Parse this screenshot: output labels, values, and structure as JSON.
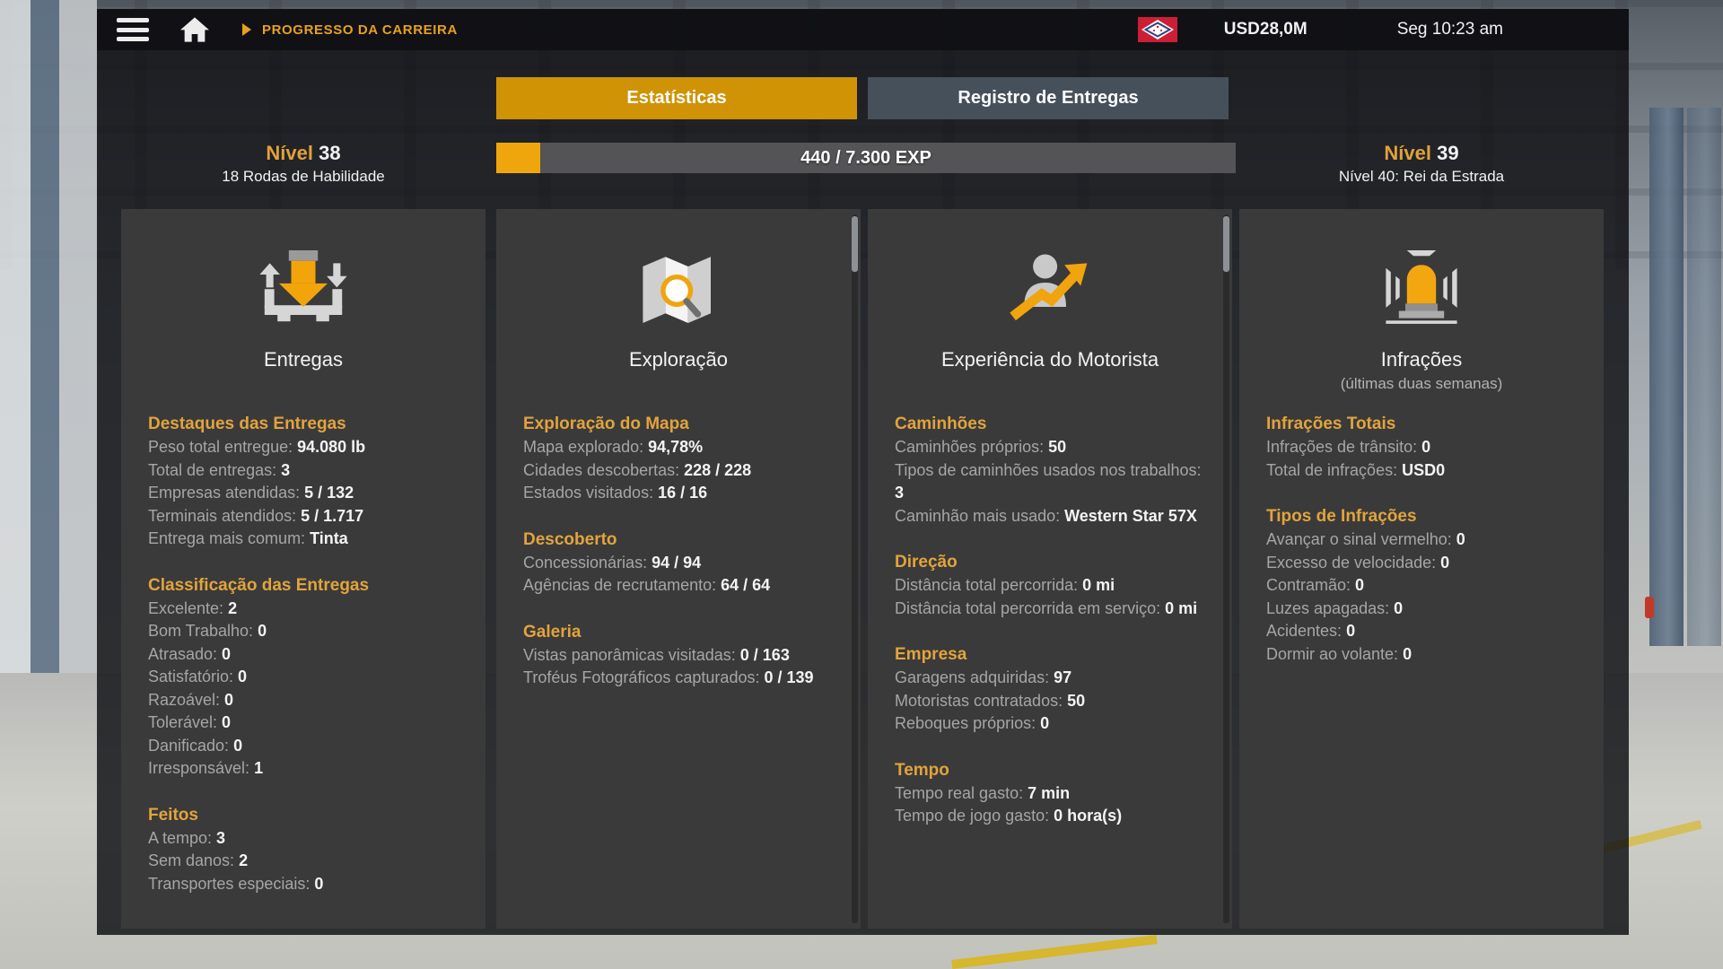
{
  "topbar": {
    "menu_icon": "hamburger-menu-icon",
    "home_icon": "home-icon",
    "breadcrumb": "PROGRESSO DA CARREIRA",
    "flag_icon": "arkansas-state-flag-icon",
    "money": "USD28,0M",
    "time": "Seg 10:23 am"
  },
  "tabs": [
    {
      "label": "Estatísticas",
      "active": true
    },
    {
      "label": "Registro de Entregas",
      "active": false
    }
  ],
  "level": {
    "current_label": "Nível",
    "current_value": "38",
    "current_sub": "18 Rodas de Habilidade",
    "next_label": "Nível",
    "next_value": "39",
    "next_sub": "Nível 40: Rei da Estrada",
    "exp_text": "440 / 7.300 EXP",
    "exp_percent": 6
  },
  "colors": {
    "accent_orange": "#e2a43c",
    "active_tab": "#cf9305",
    "exp_fill": "#efa60d",
    "panel_bg": "#3a3a3a",
    "label_gray": "#a6a6a6",
    "value_white": "#f4f4f4",
    "flag_red": "#cc1f36"
  },
  "columns": [
    {
      "icon": "delivery-arrows-icon",
      "title": "Entregas",
      "subtitle": "",
      "scrollbar": false,
      "sections": [
        {
          "header": "Destaques das Entregas",
          "rows": [
            {
              "label": "Peso total entregue",
              "value": "94.080 lb"
            },
            {
              "label": "Total de entregas",
              "value": "3"
            },
            {
              "label": "Empresas atendidas",
              "value": "5 / 132"
            },
            {
              "label": "Terminais atendidos",
              "value": "5 / 1.717"
            },
            {
              "label": "Entrega mais comum",
              "value": "Tinta"
            }
          ]
        },
        {
          "header": "Classificação das Entregas",
          "rows": [
            {
              "label": "Excelente",
              "value": "2"
            },
            {
              "label": "Bom Trabalho",
              "value": "0"
            },
            {
              "label": "Atrasado",
              "value": "0"
            },
            {
              "label": "Satisfatório",
              "value": "0"
            },
            {
              "label": "Razoável",
              "value": "0"
            },
            {
              "label": "Tolerável",
              "value": "0"
            },
            {
              "label": "Danificado",
              "value": "0"
            },
            {
              "label": "Irresponsável",
              "value": "1"
            }
          ]
        },
        {
          "header": "Feitos",
          "rows": [
            {
              "label": "A tempo",
              "value": "3"
            },
            {
              "label": "Sem danos",
              "value": "2"
            },
            {
              "label": "Transportes especiais",
              "value": "0"
            }
          ]
        }
      ]
    },
    {
      "icon": "map-magnifier-icon",
      "title": "Exploração",
      "subtitle": "",
      "scrollbar": true,
      "sections": [
        {
          "header": "Exploração do Mapa",
          "rows": [
            {
              "label": "Mapa explorado",
              "value": "94,78%"
            },
            {
              "label": "Cidades descobertas",
              "value": "228 / 228"
            },
            {
              "label": "Estados visitados",
              "value": "16 / 16"
            }
          ]
        },
        {
          "header": "Descoberto",
          "rows": [
            {
              "label": "Concessionárias",
              "value": "94 / 94"
            },
            {
              "label": "Agências de recrutamento",
              "value": "64 / 64"
            }
          ]
        },
        {
          "header": "Galeria",
          "rows": [
            {
              "label": "Vistas panorâmicas visitadas",
              "value": "0 / 163"
            },
            {
              "label": "Troféus Fotográficos capturados",
              "value": "0 / 139"
            }
          ]
        }
      ]
    },
    {
      "icon": "driver-trend-arrow-icon",
      "title": "Experiência do Motorista",
      "subtitle": "",
      "scrollbar": true,
      "sections": [
        {
          "header": "Caminhões",
          "rows": [
            {
              "label": "Caminhões próprios",
              "value": "50"
            },
            {
              "label": "Tipos de caminhões usados nos trabalhos",
              "value": "3"
            },
            {
              "label": "Caminhão mais usado",
              "value": "Western Star 57X"
            }
          ]
        },
        {
          "header": "Direção",
          "rows": [
            {
              "label": "Distância total percorrida",
              "value": "0 mi"
            },
            {
              "label": "Distância total percorrida em serviço",
              "value": "0 mi"
            }
          ]
        },
        {
          "header": "Empresa",
          "rows": [
            {
              "label": "Garagens adquiridas",
              "value": "97"
            },
            {
              "label": "Motoristas contratados",
              "value": "50"
            },
            {
              "label": "Reboques próprios",
              "value": "0"
            }
          ]
        },
        {
          "header": "Tempo",
          "rows": [
            {
              "label": "Tempo real gasto",
              "value": "7 min"
            },
            {
              "label": "Tempo de jogo gasto",
              "value": "0 hora(s)"
            }
          ]
        }
      ]
    },
    {
      "icon": "siren-beacon-icon",
      "title": "Infrações",
      "subtitle": "(últimas duas semanas)",
      "scrollbar": false,
      "sections": [
        {
          "header": "Infrações Totais",
          "rows": [
            {
              "label": "Infrações de trânsito",
              "value": "0"
            },
            {
              "label": "Total de infrações",
              "value": "USD0"
            }
          ]
        },
        {
          "header": "Tipos de Infrações",
          "rows": [
            {
              "label": "Avançar o sinal vermelho",
              "value": "0"
            },
            {
              "label": "Excesso de velocidade",
              "value": "0"
            },
            {
              "label": "Contramão",
              "value": "0"
            },
            {
              "label": "Luzes apagadas",
              "value": "0"
            },
            {
              "label": "Acidentes",
              "value": "0"
            },
            {
              "label": "Dormir ao volante",
              "value": "0"
            }
          ]
        }
      ]
    }
  ]
}
